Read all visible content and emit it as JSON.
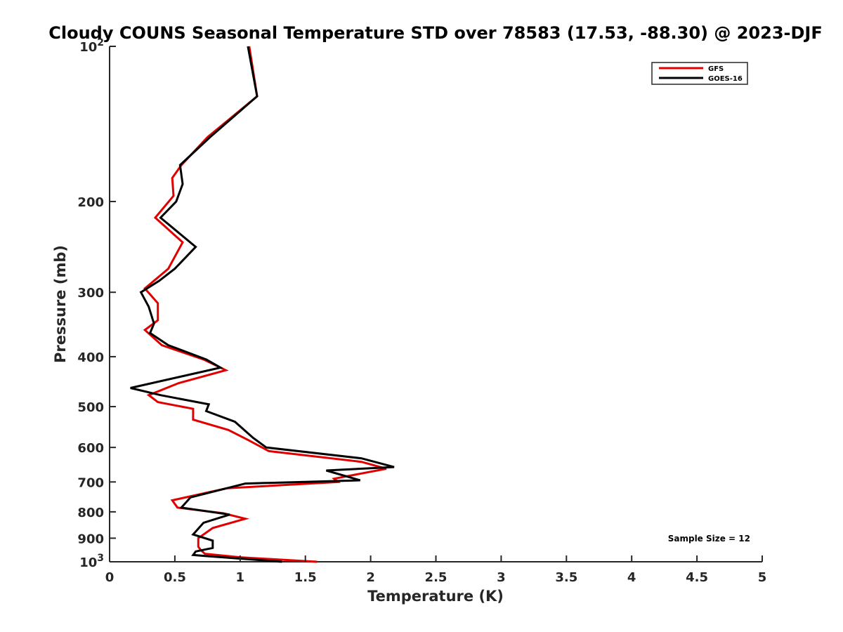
{
  "chart_data": {
    "type": "line",
    "title": "Cloudy COUNS Seasonal Temperature STD over 78583 (17.53, -88.30) @ 2023-DJF",
    "xlabel": "Temperature (K)",
    "ylabel": "Pressure (mb)",
    "xlim": [
      0,
      5
    ],
    "ylim": [
      100,
      1000
    ],
    "y_scale": "log",
    "y_reversed": true,
    "x_ticks": [
      0,
      0.5,
      1,
      1.5,
      2,
      2.5,
      3,
      3.5,
      4,
      4.5,
      5
    ],
    "x_tick_labels": [
      "0",
      "0.5",
      "1",
      "1.5",
      "2",
      "2.5",
      "3",
      "3.5",
      "4",
      "4.5",
      "5"
    ],
    "y_ticks": [
      100,
      200,
      300,
      400,
      500,
      600,
      700,
      800,
      900,
      1000
    ],
    "y_tick_labels": [
      {
        "base": "10",
        "exp": "2"
      },
      {
        "base": "200",
        "exp": ""
      },
      {
        "base": "300",
        "exp": ""
      },
      {
        "base": "400",
        "exp": ""
      },
      {
        "base": "500",
        "exp": ""
      },
      {
        "base": "600",
        "exp": ""
      },
      {
        "base": "700",
        "exp": ""
      },
      {
        "base": "800",
        "exp": ""
      },
      {
        "base": "900",
        "exp": ""
      },
      {
        "base": "10",
        "exp": "3"
      }
    ],
    "legend_position": "top-right",
    "annotation": "Sample Size = 12",
    "series": [
      {
        "name": "GFS",
        "color": "#e00000",
        "points": [
          [
            1.07,
            100
          ],
          [
            1.13,
            125
          ],
          [
            0.75,
            150
          ],
          [
            0.55,
            170
          ],
          [
            0.48,
            180
          ],
          [
            0.49,
            195
          ],
          [
            0.35,
            215
          ],
          [
            0.56,
            240
          ],
          [
            0.45,
            270
          ],
          [
            0.27,
            295
          ],
          [
            0.37,
            315
          ],
          [
            0.37,
            340
          ],
          [
            0.27,
            355
          ],
          [
            0.4,
            380
          ],
          [
            0.72,
            405
          ],
          [
            0.89,
            425
          ],
          [
            0.53,
            450
          ],
          [
            0.3,
            475
          ],
          [
            0.37,
            490
          ],
          [
            0.64,
            505
          ],
          [
            0.64,
            530
          ],
          [
            0.91,
            555
          ],
          [
            1.06,
            580
          ],
          [
            1.22,
            610
          ],
          [
            1.93,
            640
          ],
          [
            2.12,
            660
          ],
          [
            1.72,
            690
          ],
          [
            1.75,
            700
          ],
          [
            0.9,
            720
          ],
          [
            0.48,
            760
          ],
          [
            0.52,
            785
          ],
          [
            0.87,
            805
          ],
          [
            1.04,
            825
          ],
          [
            0.79,
            860
          ],
          [
            0.68,
            900
          ],
          [
            0.68,
            935
          ],
          [
            0.7,
            950
          ],
          [
            0.73,
            965
          ],
          [
            1.0,
            980
          ],
          [
            1.59,
            1000
          ]
        ]
      },
      {
        "name": "GOES-16",
        "color": "#000000",
        "points": [
          [
            1.06,
            100
          ],
          [
            1.13,
            125
          ],
          [
            0.77,
            150
          ],
          [
            0.54,
            170
          ],
          [
            0.56,
            185
          ],
          [
            0.51,
            200
          ],
          [
            0.39,
            215
          ],
          [
            0.66,
            245
          ],
          [
            0.5,
            270
          ],
          [
            0.38,
            285
          ],
          [
            0.24,
            300
          ],
          [
            0.3,
            320
          ],
          [
            0.34,
            345
          ],
          [
            0.31,
            360
          ],
          [
            0.45,
            380
          ],
          [
            0.74,
            405
          ],
          [
            0.85,
            420
          ],
          [
            0.16,
            460
          ],
          [
            0.39,
            475
          ],
          [
            0.76,
            495
          ],
          [
            0.74,
            510
          ],
          [
            0.96,
            535
          ],
          [
            1.1,
            575
          ],
          [
            1.2,
            600
          ],
          [
            1.93,
            630
          ],
          [
            2.18,
            655
          ],
          [
            1.66,
            665
          ],
          [
            1.92,
            695
          ],
          [
            1.04,
            705
          ],
          [
            0.62,
            750
          ],
          [
            0.55,
            785
          ],
          [
            0.92,
            810
          ],
          [
            0.72,
            840
          ],
          [
            0.64,
            885
          ],
          [
            0.79,
            910
          ],
          [
            0.79,
            940
          ],
          [
            0.66,
            955
          ],
          [
            0.64,
            970
          ],
          [
            0.74,
            975
          ],
          [
            1.32,
            1000
          ]
        ]
      }
    ]
  }
}
